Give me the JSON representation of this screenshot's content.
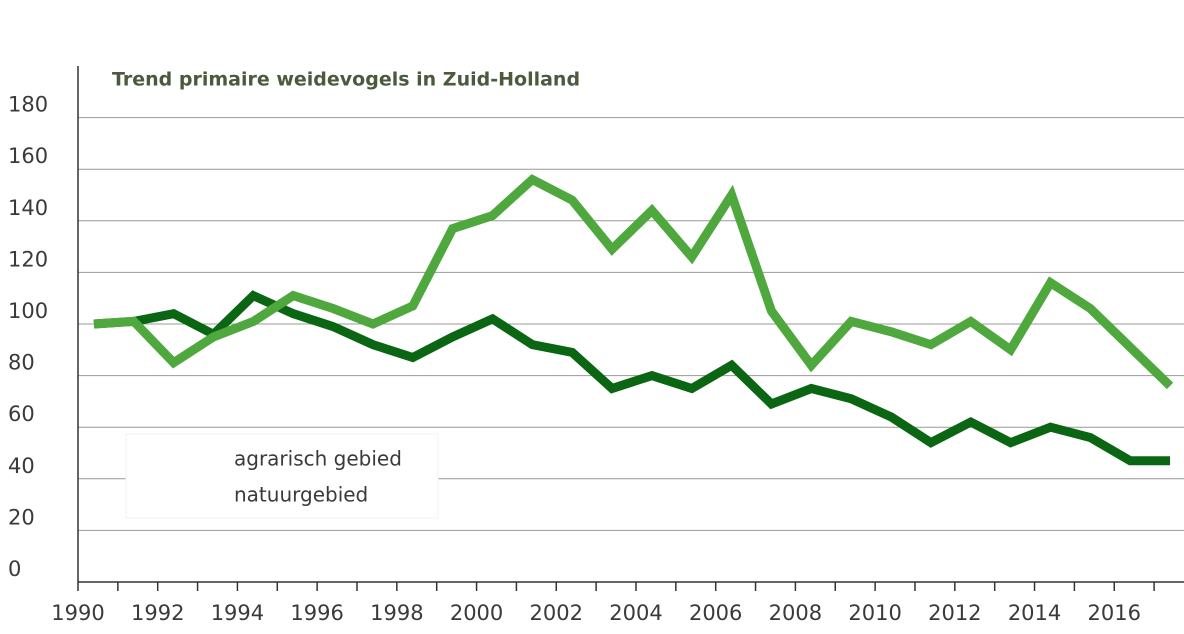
{
  "chart_data": {
    "type": "line",
    "title": "Trend primaire weidevogels in Zuid-Holland",
    "x": [
      1990.4,
      1991.4,
      1992.4,
      1993.4,
      1994.4,
      1995.4,
      1996.4,
      1997.4,
      1998.4,
      1999.4,
      2000.4,
      2001.4,
      2002.4,
      2003.4,
      2004.4,
      2005.4,
      2006.4,
      2007.4,
      2008.4,
      2009.4,
      2010.4,
      2011.4,
      2012.4,
      2013.4,
      2014.4,
      2015.4,
      2016.4,
      2017.4
    ],
    "series": [
      {
        "name": "agrarisch gebied",
        "color": "#0b6614",
        "values": [
          100,
          101,
          104,
          96,
          111,
          104,
          99,
          92,
          87,
          95,
          102,
          92,
          89,
          75,
          80,
          75,
          84,
          69,
          75,
          71,
          64,
          54,
          62,
          54,
          60,
          56,
          47,
          47
        ]
      },
      {
        "name": "natuurgebied",
        "color": "#4fa83d",
        "values": [
          100,
          101,
          85,
          95,
          101,
          111,
          106,
          100,
          107,
          137,
          142,
          156,
          148,
          129,
          144,
          126,
          150,
          105,
          84,
          101,
          97,
          92,
          101,
          90,
          116,
          106,
          91,
          76
        ]
      }
    ],
    "xlim": [
      1990,
      2017.75
    ],
    "xticks": [
      1990,
      1992,
      1994,
      1996,
      1998,
      2000,
      2002,
      2004,
      2006,
      2008,
      2010,
      2012,
      2014,
      2016
    ],
    "xminorticks": [
      1991,
      1993,
      1995,
      1997,
      1999,
      2001,
      2003,
      2005,
      2007,
      2009,
      2011,
      2013,
      2015,
      2017
    ],
    "ylim": [
      0,
      200
    ],
    "yticks": [
      0,
      20,
      40,
      60,
      80,
      100,
      120,
      140,
      160,
      180
    ],
    "grid": true
  }
}
